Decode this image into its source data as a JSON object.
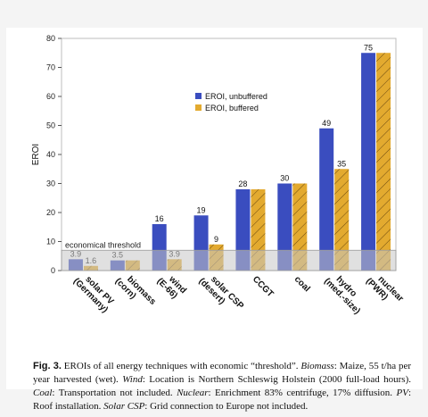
{
  "chart_data": {
    "type": "bar",
    "ylabel": "EROI",
    "ylim": [
      0,
      80
    ],
    "yticks": [
      0,
      10,
      20,
      30,
      40,
      50,
      60,
      70,
      80
    ],
    "categories": [
      [
        "solar PV",
        "(Germany)"
      ],
      [
        "biomass",
        "(corn)"
      ],
      [
        "wind",
        "(E-66)"
      ],
      [
        "solar CSP",
        "(desert)"
      ],
      [
        "CCGT"
      ],
      [
        "coal"
      ],
      [
        "hydro",
        "(med.-size)"
      ],
      [
        "nuclear",
        "(PWR)"
      ]
    ],
    "series": [
      {
        "name": "EROI, unbuffered",
        "color": "#3a4dbf",
        "hatch": false,
        "values": [
          3.9,
          3.5,
          16,
          19,
          28,
          30,
          49,
          75
        ],
        "labels": [
          "3.9",
          "3.5",
          "16",
          "19",
          "28",
          "30",
          "49",
          "75"
        ]
      },
      {
        "name": "EROI, buffered",
        "color": "#e3aa2f",
        "hatch": true,
        "values": [
          1.6,
          3.5,
          3.9,
          9,
          28,
          30,
          35,
          75
        ],
        "labels": [
          "1.6",
          "",
          "3.9",
          "9",
          "",
          "",
          "35",
          ""
        ]
      }
    ],
    "threshold": {
      "value": 7,
      "label": "economical threshold"
    },
    "legend_position": "upper-center",
    "grid": false
  },
  "caption": {
    "fig_label": "Fig. 3.",
    "intro": "EROIs of all energy techniques with economic “threshold”.",
    "biomass_term": "Biomass",
    "biomass_text": ": Maize, 55 t/ha per year harvested (wet).",
    "wind_term": "Wind",
    "wind_text": ": Location is Northern Schleswig Holstein (2000 full-load hours).",
    "coal_term": "Coal",
    "coal_text": ": Transportation not included.",
    "nuclear_term": "Nuclear",
    "nuclear_text": ": Enrichment 83% centrifuge, 17% diffusion.",
    "pv_term": "PV",
    "pv_text": ": Roof installation.",
    "csp_term": "Solar CSP",
    "csp_text": ": Grid connection to Europe not included."
  }
}
